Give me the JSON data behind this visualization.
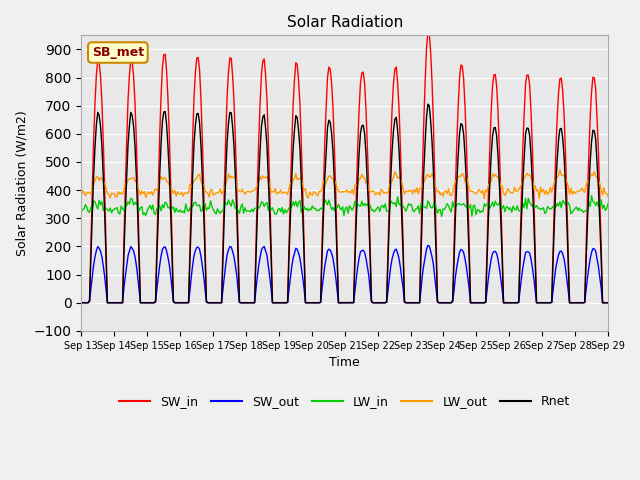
{
  "title": "Solar Radiation",
  "ylabel": "Solar Radiation (W/m2)",
  "xlabel": "Time",
  "ylim": [
    -100,
    950
  ],
  "yticks": [
    -100,
    0,
    100,
    200,
    300,
    400,
    500,
    600,
    700,
    800,
    900
  ],
  "annotation": "SB_met",
  "bg_color": "#e8e8e8",
  "legend": [
    "SW_in",
    "SW_out",
    "LW_in",
    "LW_out",
    "Rnet"
  ],
  "colors": {
    "SW_in": "#ff0000",
    "SW_out": "#0000ff",
    "LW_in": "#00cc00",
    "LW_out": "#ff9900",
    "Rnet": "#000000"
  },
  "n_days": 16,
  "start_day": 13,
  "end_day": 28,
  "sw_in_peaks": [
    870,
    870,
    890,
    880,
    875,
    870,
    850,
    840,
    830,
    840,
    960,
    850,
    820,
    820,
    805,
    800
  ],
  "sw_out_peaks": [
    200,
    200,
    200,
    200,
    200,
    200,
    190,
    190,
    190,
    190,
    200,
    190,
    185,
    185,
    185,
    190
  ],
  "rnet_peaks": [
    680,
    680,
    685,
    680,
    680,
    670,
    660,
    650,
    640,
    660,
    700,
    640,
    630,
    630,
    625,
    610
  ]
}
